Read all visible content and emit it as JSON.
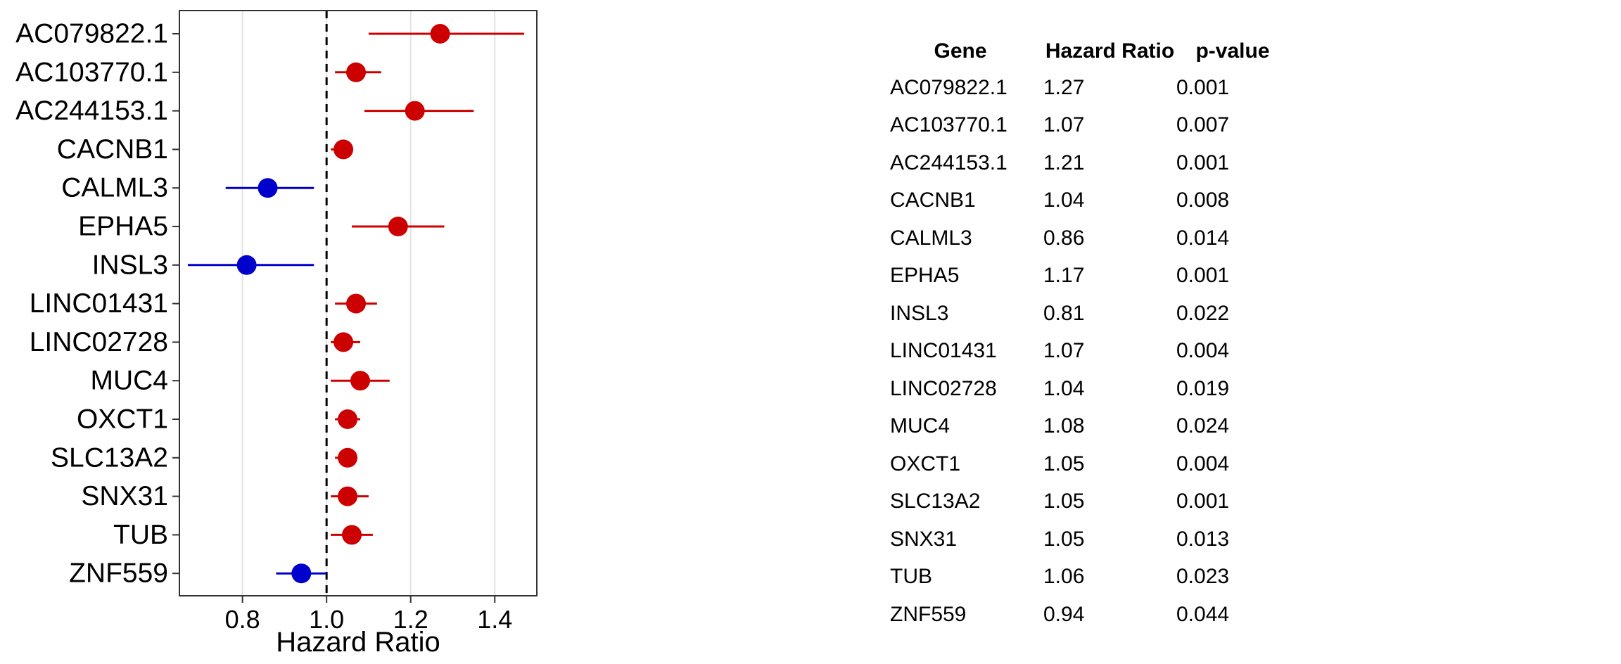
{
  "chart_data": {
    "type": "forest",
    "xlabel": "Hazard Ratio",
    "xlim": [
      0.65,
      1.5
    ],
    "xticks": [
      0.8,
      1.0,
      1.2,
      1.4
    ],
    "xtick_labels": [
      "0.8",
      "1.0",
      "1.2",
      "1.4"
    ],
    "reference_line": 1.0,
    "grid": "vertical",
    "colors": {
      "risk": "#cc0000",
      "protective": "#0000cc",
      "grid": "#e3e3e3",
      "frame": "#333333"
    },
    "genes": [
      "AC079822.1",
      "AC103770.1",
      "AC244153.1",
      "CACNB1",
      "CALML3",
      "EPHA5",
      "INSL3",
      "LINC01431",
      "LINC02728",
      "MUC4",
      "OXCT1",
      "SLC13A2",
      "SNX31",
      "TUB",
      "ZNF559"
    ],
    "hr": [
      1.27,
      1.07,
      1.21,
      1.04,
      0.86,
      1.17,
      0.81,
      1.07,
      1.04,
      1.08,
      1.05,
      1.05,
      1.05,
      1.06,
      0.94
    ],
    "lower": [
      1.1,
      1.02,
      1.09,
      1.01,
      0.76,
      1.06,
      0.67,
      1.02,
      1.01,
      1.01,
      1.02,
      1.02,
      1.01,
      1.01,
      0.88
    ],
    "upper": [
      1.47,
      1.13,
      1.35,
      1.06,
      0.97,
      1.28,
      0.97,
      1.12,
      1.08,
      1.15,
      1.08,
      1.07,
      1.1,
      1.11,
      1.0
    ],
    "p_values": [
      "0.001",
      "0.007",
      "0.001",
      "0.008",
      "0.014",
      "0.001",
      "0.022",
      "0.004",
      "0.019",
      "0.024",
      "0.004",
      "0.001",
      "0.013",
      "0.023",
      "0.044"
    ]
  },
  "table": {
    "headers": {
      "gene": "Gene",
      "hr": "Hazard Ratio",
      "p": "p-value"
    },
    "rows": [
      {
        "gene": "AC079822.1",
        "hr": "1.27",
        "p": "0.001"
      },
      {
        "gene": "AC103770.1",
        "hr": "1.07",
        "p": "0.007"
      },
      {
        "gene": "AC244153.1",
        "hr": "1.21",
        "p": "0.001"
      },
      {
        "gene": "CACNB1",
        "hr": "1.04",
        "p": "0.008"
      },
      {
        "gene": "CALML3",
        "hr": "0.86",
        "p": "0.014"
      },
      {
        "gene": "EPHA5",
        "hr": "1.17",
        "p": "0.001"
      },
      {
        "gene": "INSL3",
        "hr": "0.81",
        "p": "0.022"
      },
      {
        "gene": "LINC01431",
        "hr": "1.07",
        "p": "0.004"
      },
      {
        "gene": "LINC02728",
        "hr": "1.04",
        "p": "0.019"
      },
      {
        "gene": "MUC4",
        "hr": "1.08",
        "p": "0.024"
      },
      {
        "gene": "OXCT1",
        "hr": "1.05",
        "p": "0.004"
      },
      {
        "gene": "SLC13A2",
        "hr": "1.05",
        "p": "0.001"
      },
      {
        "gene": "SNX31",
        "hr": "1.05",
        "p": "0.013"
      },
      {
        "gene": "TUB",
        "hr": "1.06",
        "p": "0.023"
      },
      {
        "gene": "ZNF559",
        "hr": "0.94",
        "p": "0.044"
      }
    ]
  }
}
